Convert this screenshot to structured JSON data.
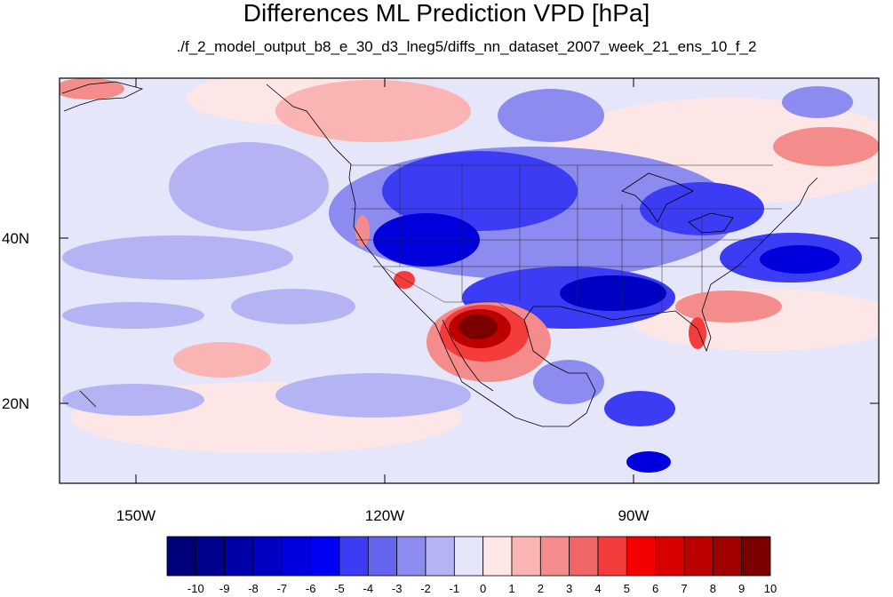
{
  "header": {
    "title": "Differences ML Prediction VPD [hPa]",
    "subtitle": "./f_2_model_output_b8_e_30_d3_lneg5/diffs_nn_dataset_2007_week_21_ens_10_f_2"
  },
  "map": {
    "lat_labels": [
      "40N",
      "20N"
    ],
    "lon_labels": [
      "150W",
      "120W",
      "90W"
    ]
  },
  "colorbar": {
    "labels": [
      "-10",
      "-9",
      "-8",
      "-7",
      "-6",
      "-5",
      "-4",
      "-3",
      "-2",
      "-1",
      "0",
      "1",
      "2",
      "3",
      "4",
      "5",
      "6",
      "7",
      "8",
      "9",
      "10"
    ],
    "colors": [
      "#00007a",
      "#00008f",
      "#0000a8",
      "#0000c2",
      "#0000dc",
      "#0000f5",
      "#3c3cf5",
      "#6565f0",
      "#8c8cf0",
      "#b4b4f5",
      "#e6e6fa",
      "#fde6e6",
      "#fab4b4",
      "#f58c8c",
      "#f06565",
      "#f53c3c",
      "#f50000",
      "#d80000",
      "#bc0000",
      "#a00000",
      "#7a0000"
    ]
  },
  "palette": {
    "ocean_background": "#e6e6fa",
    "land_outline": "#000000"
  }
}
